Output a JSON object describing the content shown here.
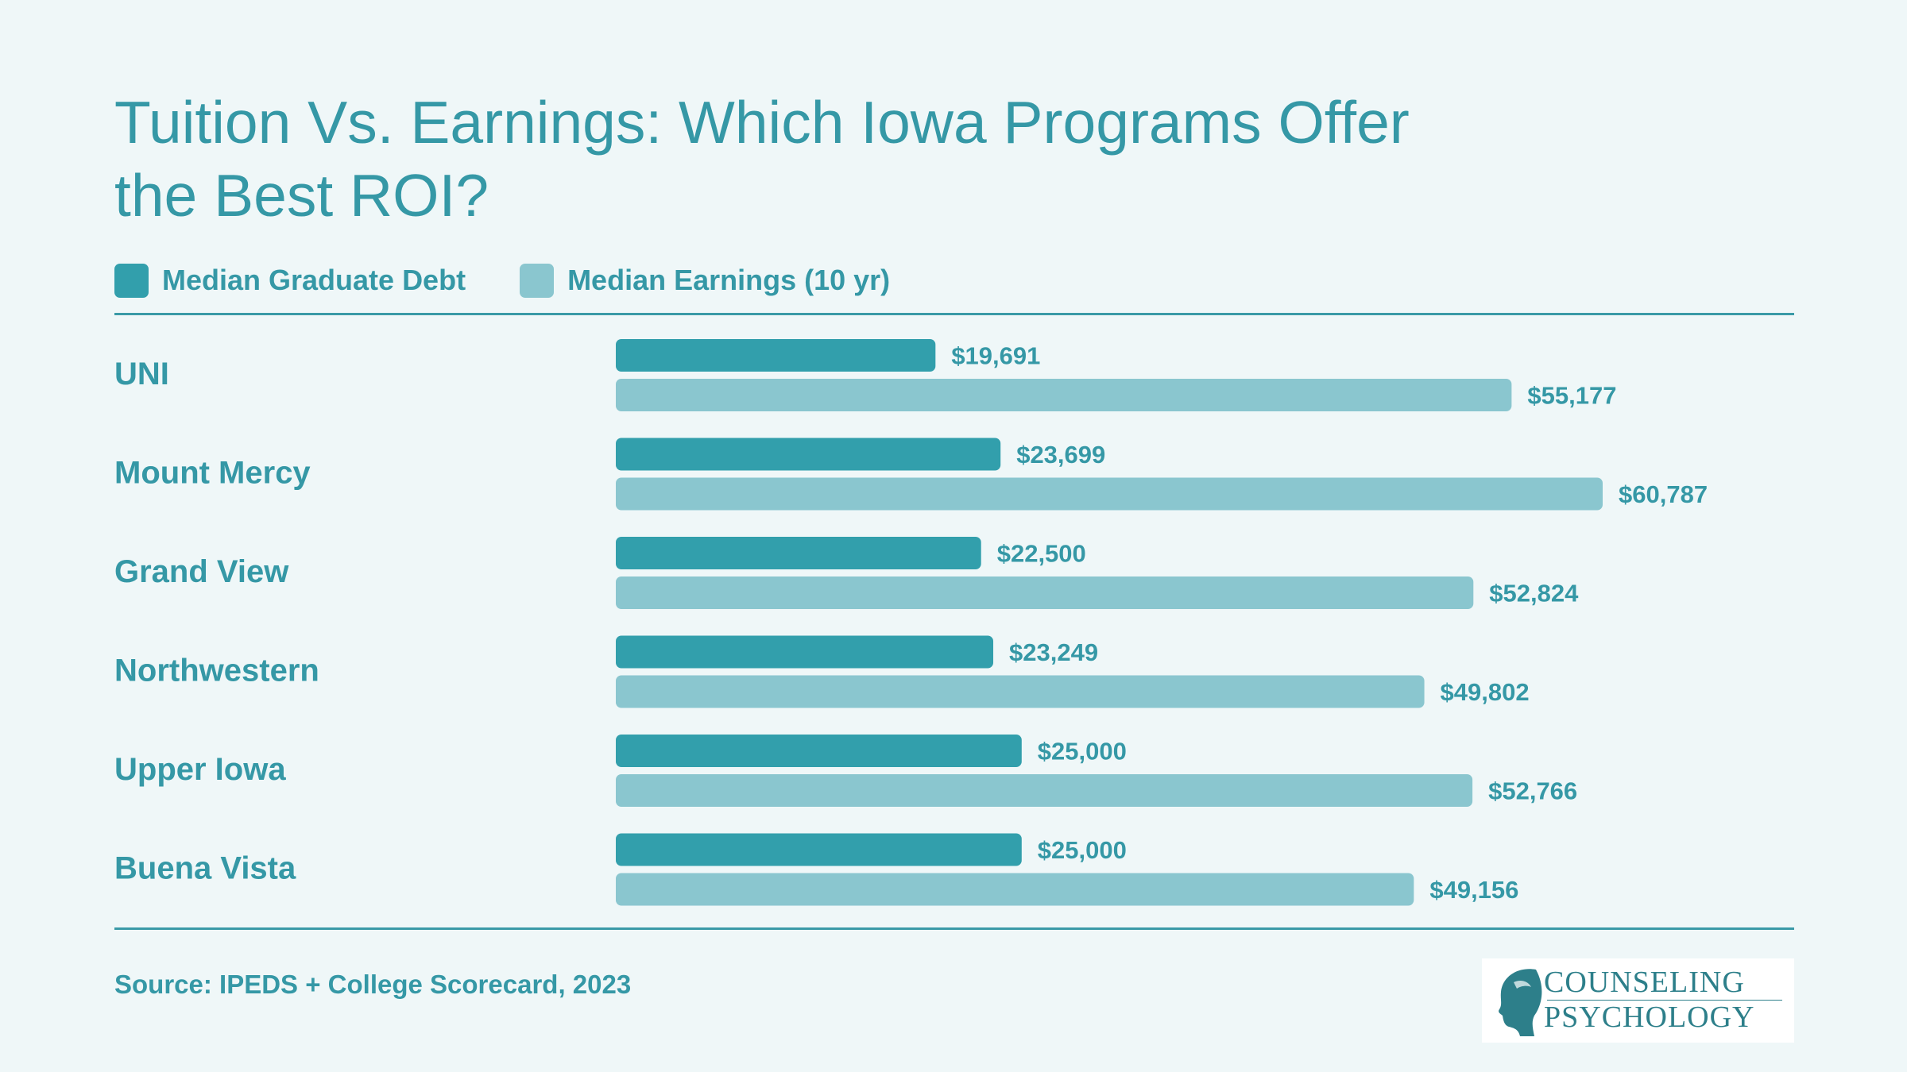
{
  "title_line1": "Tuition Vs. Earnings: Which Iowa Programs Offer",
  "title_line2": "the Best ROI?",
  "legend": [
    {
      "label": "Median Graduate Debt",
      "color": "#329fac"
    },
    {
      "label": "Median Earnings (10 yr)",
      "color": "#8ac6cf"
    }
  ],
  "source": "Source: IPEDS + College Scorecard, 2023",
  "logo": {
    "line1": "COUNSELING",
    "line2": "PSYCHOLOGY"
  },
  "chart_data": {
    "type": "bar",
    "orientation": "horizontal",
    "title": "Tuition Vs. Earnings: Which Iowa Programs Offer the Best ROI?",
    "categories": [
      "UNI",
      "Mount Mercy",
      "Grand View",
      "Northwestern",
      "Upper Iowa",
      "Buena Vista"
    ],
    "series": [
      {
        "name": "Median Graduate Debt",
        "color": "#329fac",
        "values": [
          19691,
          23699,
          22500,
          23249,
          25000,
          25000
        ],
        "labels": [
          "$19,691",
          "$23,699",
          "$22,500",
          "$23,249",
          "$25,000",
          "$25,000"
        ]
      },
      {
        "name": "Median Earnings (10 yr)",
        "color": "#8ac6cf",
        "values": [
          55177,
          60787,
          52824,
          49802,
          52766,
          49156
        ],
        "labels": [
          "$55,177",
          "$60,787",
          "$52,824",
          "$49,802",
          "$52,766",
          "$49,156"
        ]
      }
    ],
    "xlim": [
      0,
      60787
    ],
    "grid": false,
    "legend_position": "top-left"
  }
}
